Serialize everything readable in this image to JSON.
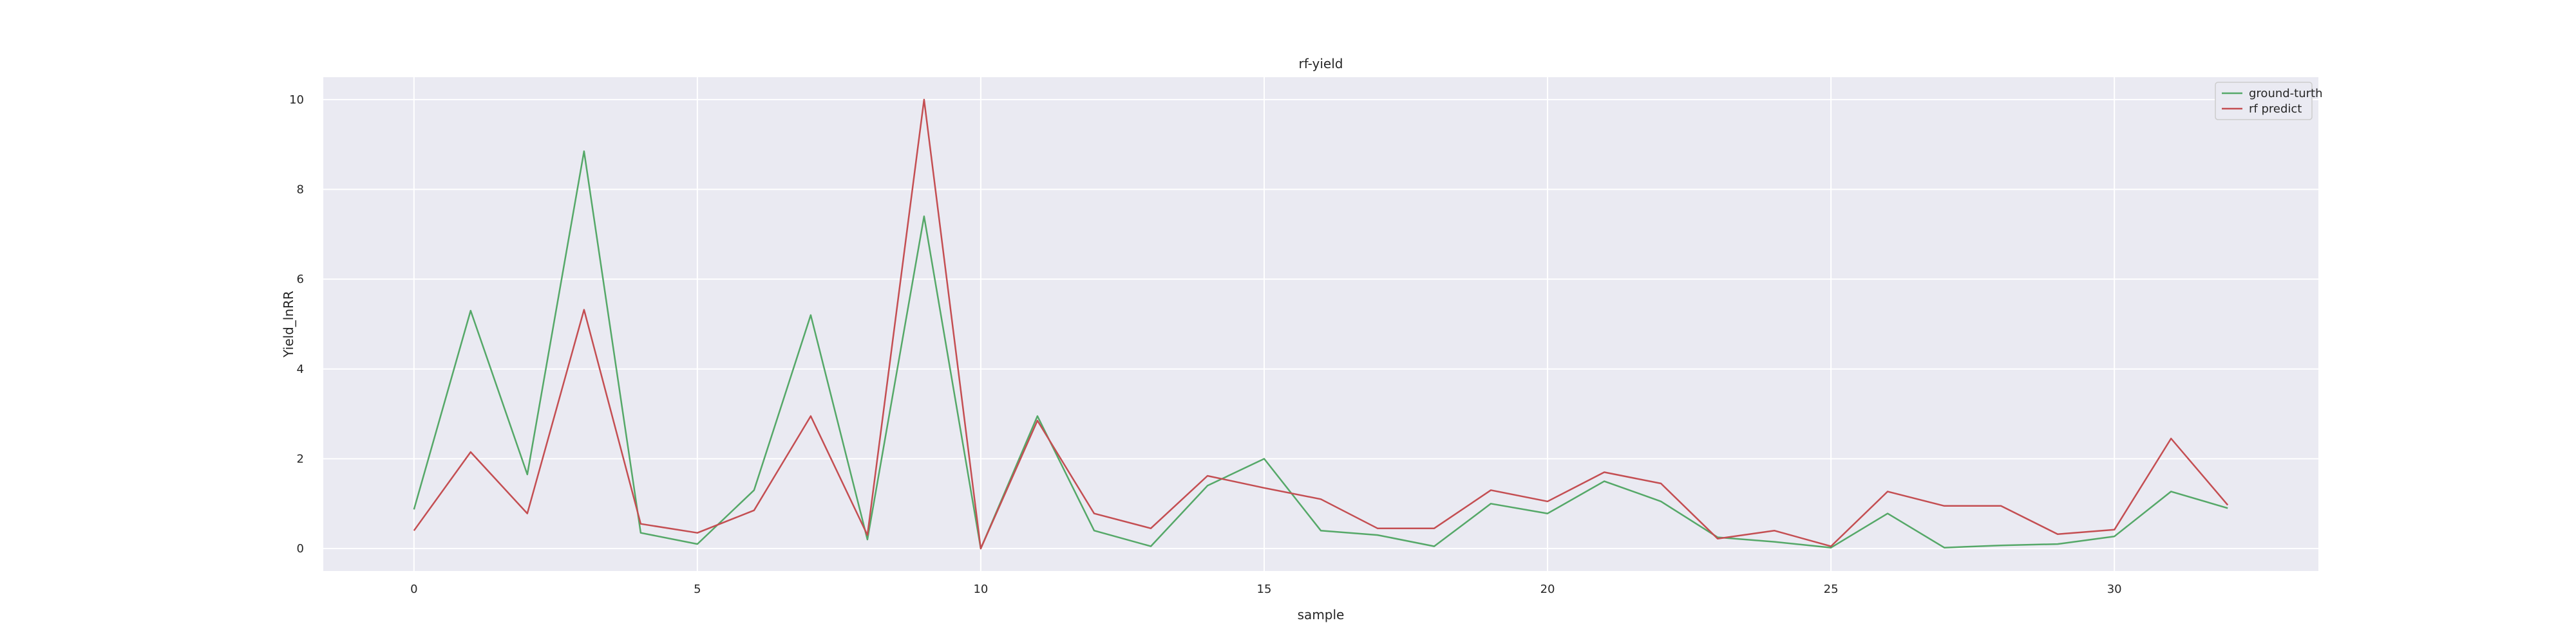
{
  "chart_data": {
    "type": "line",
    "title": "rf-yield",
    "xlabel": "sample",
    "ylabel": "Yield_lnRR",
    "xlim": [
      -1.6,
      33.6
    ],
    "ylim": [
      -0.5,
      10.5
    ],
    "xticks": [
      0,
      5,
      10,
      15,
      20,
      25,
      30
    ],
    "yticks": [
      0,
      2,
      4,
      6,
      8,
      10
    ],
    "grid": true,
    "legend_position": "top-right",
    "background": "#eaeaf2",
    "x": [
      0,
      1,
      2,
      3,
      4,
      5,
      6,
      7,
      8,
      9,
      10,
      11,
      12,
      13,
      14,
      15,
      16,
      17,
      18,
      19,
      20,
      21,
      22,
      23,
      24,
      25,
      26,
      27,
      28,
      29,
      30,
      31,
      32
    ],
    "series": [
      {
        "name": "ground-turth",
        "color": "#55a868",
        "values": [
          0.87,
          5.3,
          1.65,
          8.85,
          0.35,
          0.1,
          1.3,
          5.2,
          0.2,
          7.4,
          0.0,
          2.95,
          0.4,
          0.05,
          1.4,
          2.0,
          0.4,
          0.3,
          0.05,
          1.0,
          0.78,
          1.5,
          1.05,
          0.25,
          0.15,
          0.02,
          0.78,
          0.02,
          0.07,
          0.1,
          0.27,
          1.27,
          0.9
        ]
      },
      {
        "name": "rf predict",
        "color": "#c44e52",
        "values": [
          0.4,
          2.15,
          0.78,
          5.32,
          0.55,
          0.35,
          0.85,
          2.95,
          0.3,
          10.0,
          0.0,
          2.85,
          0.78,
          0.45,
          1.62,
          1.35,
          1.1,
          0.45,
          0.45,
          1.3,
          1.05,
          1.7,
          1.45,
          0.22,
          0.4,
          0.05,
          1.27,
          0.95,
          0.95,
          0.32,
          0.42,
          2.45,
          0.97
        ]
      }
    ]
  }
}
